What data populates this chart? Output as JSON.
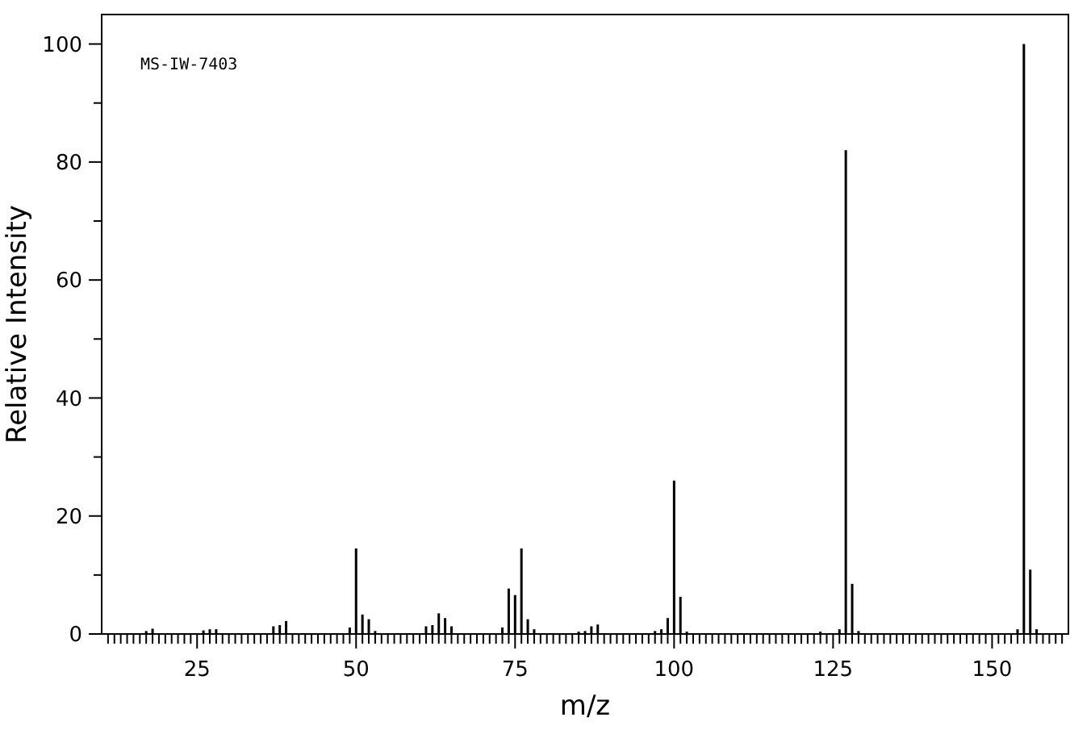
{
  "chart_data": {
    "type": "bar",
    "xlabel": "m/z",
    "ylabel": "Relative Intensity",
    "annotations": [
      "MS-IW-7403"
    ],
    "x": [
      17,
      18,
      26,
      27,
      28,
      37,
      38,
      39,
      49,
      50,
      51,
      52,
      53,
      61,
      62,
      63,
      64,
      65,
      73,
      74,
      75,
      76,
      77,
      78,
      85,
      86,
      87,
      88,
      97,
      98,
      99,
      100,
      101,
      102,
      123,
      126,
      127,
      128,
      129,
      154,
      155,
      156,
      157
    ],
    "values": [
      0.5,
      0.9,
      0.6,
      0.8,
      0.8,
      1.3,
      1.5,
      2.2,
      1.1,
      14.5,
      3.3,
      2.5,
      0.5,
      1.3,
      1.5,
      3.5,
      2.7,
      1.3,
      1.1,
      7.7,
      6.6,
      14.5,
      2.5,
      0.8,
      0.4,
      0.5,
      1.3,
      1.6,
      0.5,
      0.8,
      2.7,
      26,
      6.3,
      0.4,
      0.4,
      0.8,
      82,
      8.5,
      0.5,
      0.8,
      100,
      10.9,
      0.8
    ],
    "color": "#000000",
    "xlim": [
      10,
      162
    ],
    "xticks": [
      {
        "value": 11,
        "label": null
      },
      {
        "value": 12,
        "label": null
      },
      {
        "value": 13,
        "label": null
      },
      {
        "value": 14,
        "label": null
      },
      {
        "value": 15,
        "label": null
      },
      {
        "value": 16,
        "label": null
      },
      {
        "value": 17,
        "label": null
      },
      {
        "value": 18,
        "label": null
      },
      {
        "value": 19,
        "label": null
      },
      {
        "value": 20,
        "label": null
      },
      {
        "value": 21,
        "label": null
      },
      {
        "value": 22,
        "label": null
      },
      {
        "value": 23,
        "label": null
      },
      {
        "value": 24,
        "label": null
      },
      25,
      {
        "value": 26,
        "label": null
      },
      {
        "value": 27,
        "label": null
      },
      {
        "value": 28,
        "label": null
      },
      {
        "value": 29,
        "label": null
      },
      {
        "value": 30,
        "label": null
      },
      {
        "value": 31,
        "label": null
      },
      {
        "value": 32,
        "label": null
      },
      {
        "value": 33,
        "label": null
      },
      {
        "value": 34,
        "label": null
      },
      {
        "value": 35,
        "label": null
      },
      {
        "value": 36,
        "label": null
      },
      {
        "value": 37,
        "label": null
      },
      {
        "value": 38,
        "label": null
      },
      {
        "value": 39,
        "label": null
      },
      {
        "value": 40,
        "label": null
      },
      {
        "value": 41,
        "label": null
      },
      {
        "value": 42,
        "label": null
      },
      {
        "value": 43,
        "label": null
      },
      {
        "value": 44,
        "label": null
      },
      {
        "value": 45,
        "label": null
      },
      {
        "value": 46,
        "label": null
      },
      {
        "value": 47,
        "label": null
      },
      {
        "value": 48,
        "label": null
      },
      {
        "value": 49,
        "label": null
      },
      50,
      {
        "value": 51,
        "label": null
      },
      {
        "value": 52,
        "label": null
      },
      {
        "value": 53,
        "label": null
      },
      {
        "value": 54,
        "label": null
      },
      {
        "value": 55,
        "label": null
      },
      {
        "value": 56,
        "label": null
      },
      {
        "value": 57,
        "label": null
      },
      {
        "value": 58,
        "label": null
      },
      {
        "value": 59,
        "label": null
      },
      {
        "value": 60,
        "label": null
      },
      {
        "value": 61,
        "label": null
      },
      {
        "value": 62,
        "label": null
      },
      {
        "value": 63,
        "label": null
      },
      {
        "value": 64,
        "label": null
      },
      {
        "value": 65,
        "label": null
      },
      {
        "value": 66,
        "label": null
      },
      {
        "value": 67,
        "label": null
      },
      {
        "value": 68,
        "label": null
      },
      {
        "value": 69,
        "label": null
      },
      {
        "value": 70,
        "label": null
      },
      {
        "value": 71,
        "label": null
      },
      {
        "value": 72,
        "label": null
      },
      {
        "value": 73,
        "label": null
      },
      {
        "value": 74,
        "label": null
      },
      75,
      {
        "value": 76,
        "label": null
      },
      {
        "value": 77,
        "label": null
      },
      {
        "value": 78,
        "label": null
      },
      {
        "value": 79,
        "label": null
      },
      {
        "value": 80,
        "label": null
      },
      {
        "value": 81,
        "label": null
      },
      {
        "value": 82,
        "label": null
      },
      {
        "value": 83,
        "label": null
      },
      {
        "value": 84,
        "label": null
      },
      {
        "value": 85,
        "label": null
      },
      {
        "value": 86,
        "label": null
      },
      {
        "value": 87,
        "label": null
      },
      {
        "value": 88,
        "label": null
      },
      {
        "value": 89,
        "label": null
      },
      {
        "value": 90,
        "label": null
      },
      {
        "value": 91,
        "label": null
      },
      {
        "value": 92,
        "label": null
      },
      {
        "value": 93,
        "label": null
      },
      {
        "value": 94,
        "label": null
      },
      {
        "value": 95,
        "label": null
      },
      {
        "value": 96,
        "label": null
      },
      {
        "value": 97,
        "label": null
      },
      {
        "value": 98,
        "label": null
      },
      {
        "value": 99,
        "label": null
      },
      100,
      {
        "value": 101,
        "label": null
      },
      {
        "value": 102,
        "label": null
      },
      {
        "value": 103,
        "label": null
      },
      {
        "value": 104,
        "label": null
      },
      {
        "value": 105,
        "label": null
      },
      {
        "value": 106,
        "label": null
      },
      {
        "value": 107,
        "label": null
      },
      {
        "value": 108,
        "label": null
      },
      {
        "value": 109,
        "label": null
      },
      {
        "value": 110,
        "label": null
      },
      {
        "value": 111,
        "label": null
      },
      {
        "value": 112,
        "label": null
      },
      {
        "value": 113,
        "label": null
      },
      {
        "value": 114,
        "label": null
      },
      {
        "value": 115,
        "label": null
      },
      {
        "value": 116,
        "label": null
      },
      {
        "value": 117,
        "label": null
      },
      {
        "value": 118,
        "label": null
      },
      {
        "value": 119,
        "label": null
      },
      {
        "value": 120,
        "label": null
      },
      {
        "value": 121,
        "label": null
      },
      {
        "value": 122,
        "label": null
      },
      {
        "value": 123,
        "label": null
      },
      {
        "value": 124,
        "label": null
      },
      125,
      {
        "value": 126,
        "label": null
      },
      {
        "value": 127,
        "label": null
      },
      {
        "value": 128,
        "label": null
      },
      {
        "value": 129,
        "label": null
      },
      {
        "value": 130,
        "label": null
      },
      {
        "value": 131,
        "label": null
      },
      {
        "value": 132,
        "label": null
      },
      {
        "value": 133,
        "label": null
      },
      {
        "value": 134,
        "label": null
      },
      {
        "value": 135,
        "label": null
      },
      {
        "value": 136,
        "label": null
      },
      {
        "value": 137,
        "label": null
      },
      {
        "value": 138,
        "label": null
      },
      {
        "value": 139,
        "label": null
      },
      {
        "value": 140,
        "label": null
      },
      {
        "value": 141,
        "label": null
      },
      {
        "value": 142,
        "label": null
      },
      {
        "value": 143,
        "label": null
      },
      {
        "value": 144,
        "label": null
      },
      {
        "value": 145,
        "label": null
      },
      {
        "value": 146,
        "label": null
      },
      {
        "value": 147,
        "label": null
      },
      {
        "value": 148,
        "label": null
      },
      {
        "value": 149,
        "label": null
      },
      150,
      {
        "value": 151,
        "label": null
      },
      {
        "value": 152,
        "label": null
      },
      {
        "value": 153,
        "label": null
      },
      {
        "value": 154,
        "label": null
      },
      {
        "value": 155,
        "label": null
      },
      {
        "value": 156,
        "label": null
      },
      {
        "value": 157,
        "label": null
      },
      {
        "value": 158,
        "label": null
      },
      {
        "value": 159,
        "label": null
      },
      {
        "value": 160,
        "label": null
      },
      {
        "value": 161,
        "label": null
      }
    ],
    "ylim": [
      0,
      105
    ],
    "yticks": [
      0,
      {
        "value": 10,
        "label": null
      },
      20,
      {
        "value": 30,
        "label": null
      },
      40,
      {
        "value": 50,
        "label": null
      },
      60,
      {
        "value": 70,
        "label": null
      },
      80,
      {
        "value": 90,
        "label": null
      },
      100
    ],
    "grid": false
  }
}
